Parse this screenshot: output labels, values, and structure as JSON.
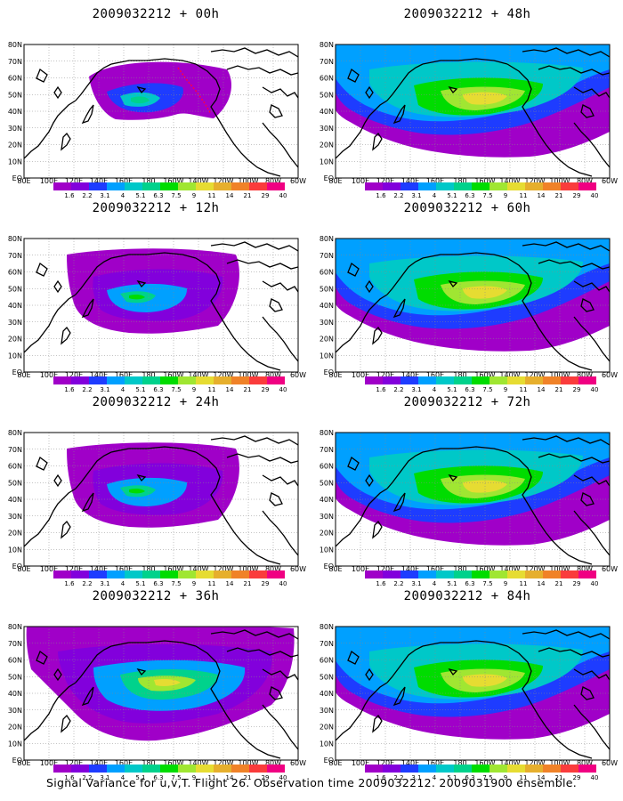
{
  "panels": [
    {
      "title": "2009032212 + 00h",
      "col": 0,
      "row": 0,
      "coverage": "small"
    },
    {
      "title": "2009032212 + 48h",
      "col": 1,
      "row": 0,
      "coverage": "large"
    },
    {
      "title": "2009032212 + 12h",
      "col": 0,
      "row": 1,
      "coverage": "medium"
    },
    {
      "title": "2009032212 + 60h",
      "col": 1,
      "row": 1,
      "coverage": "large"
    },
    {
      "title": "2009032212 + 24h",
      "col": 0,
      "row": 2,
      "coverage": "medium"
    },
    {
      "title": "2009032212 + 72h",
      "col": 1,
      "row": 2,
      "coverage": "large"
    },
    {
      "title": "2009032212 + 36h",
      "col": 0,
      "row": 3,
      "coverage": "medium-large"
    },
    {
      "title": "2009032212 + 84h",
      "col": 1,
      "row": 3,
      "coverage": "large"
    }
  ],
  "lat_labels": [
    "80N",
    "70N",
    "60N",
    "50N",
    "40N",
    "30N",
    "20N",
    "10N",
    "EQ"
  ],
  "lon_labels": [
    "80E",
    "100E",
    "120E",
    "140E",
    "160E",
    "180",
    "160W",
    "140W",
    "120W",
    "100W",
    "80W",
    "60W"
  ],
  "colorbar": {
    "labels": [
      "1.6",
      "2.2",
      "3.1",
      "4",
      "5.1",
      "6.3",
      "7.5",
      "9",
      "11",
      "14",
      "21",
      "29",
      "40"
    ],
    "colors": [
      "#a000c8",
      "#8200dc",
      "#1e3cff",
      "#00a0ff",
      "#00c8c8",
      "#00d28c",
      "#00dc00",
      "#a0e632",
      "#e6dc32",
      "#e6af2d",
      "#f08228",
      "#fa3c3c",
      "#f00082"
    ]
  },
  "footer": "Signal Variance for u,v,T. Flight 26. Observation time 2009032212. 2009031900 ensemble."
}
